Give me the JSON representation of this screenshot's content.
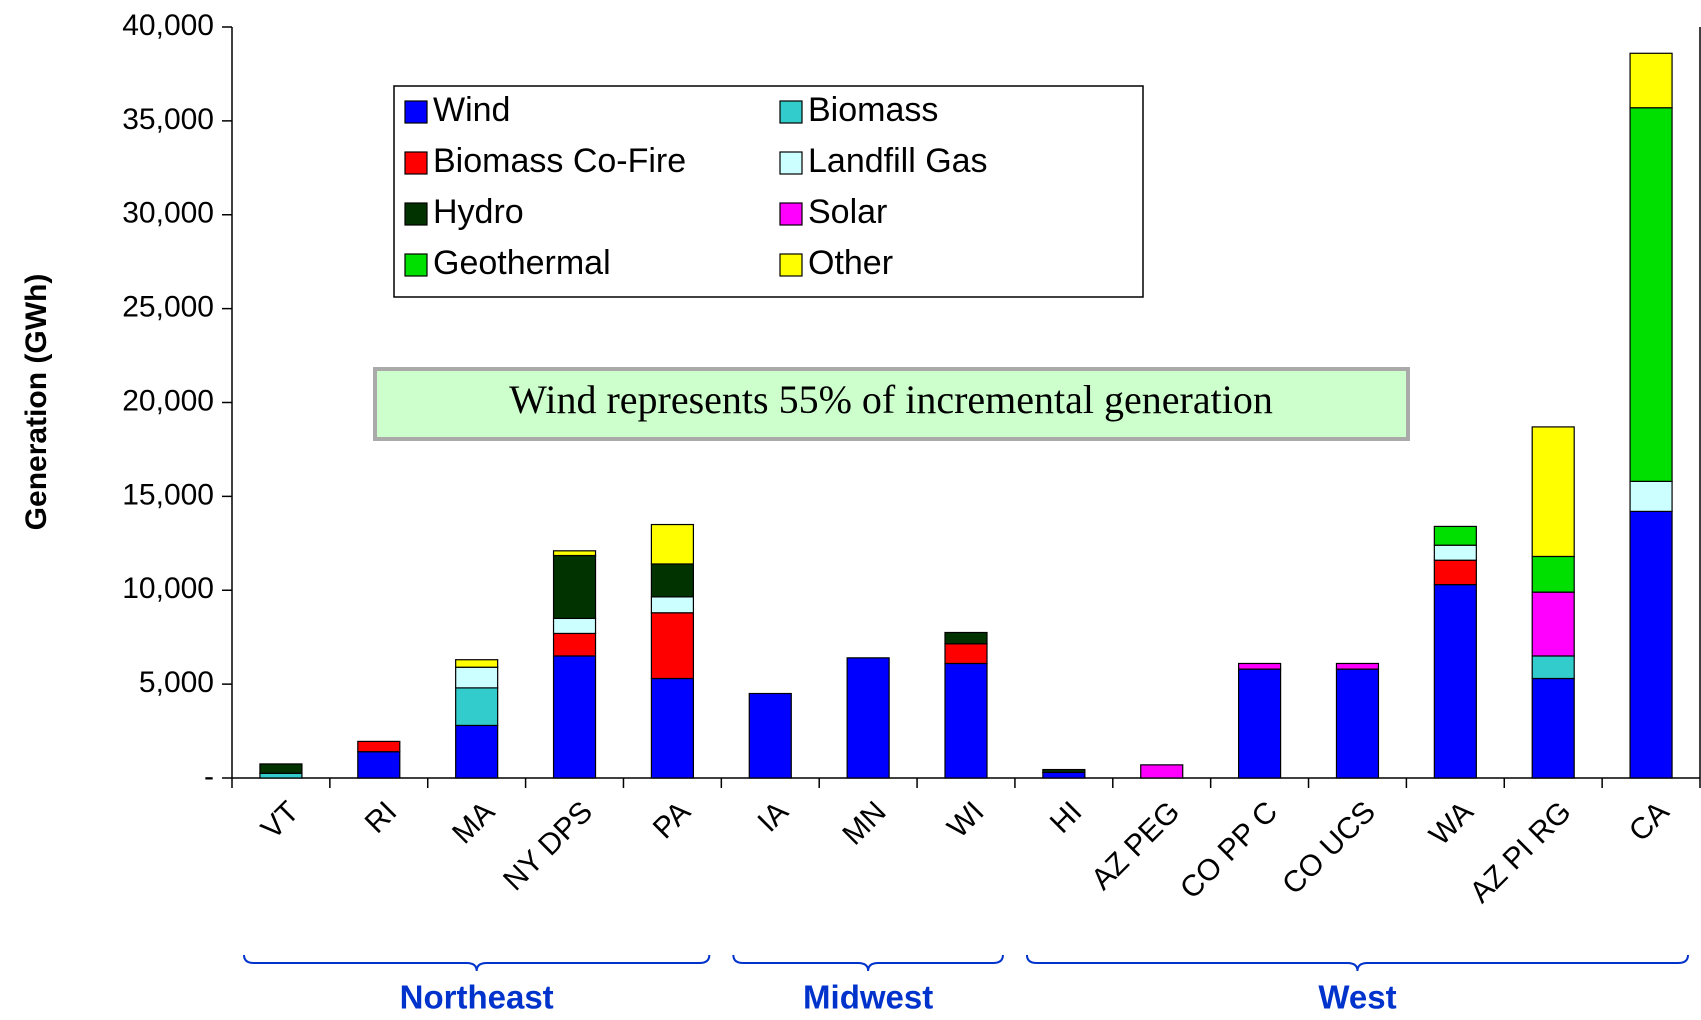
{
  "chart_data": {
    "type": "stacked-bar",
    "y_label": "Generation (GWh)",
    "annotation": "Wind represents 55% of incremental generation",
    "categories": [
      "VT",
      "RI",
      "MA",
      "NY DPS",
      "PA",
      "IA",
      "MN",
      "WI",
      "HI",
      "AZ PEG",
      "CO PP C",
      "CO UCS",
      "WA",
      "AZ PI RG",
      "CA"
    ],
    "regions": [
      "Northeast",
      "Midwest",
      "West"
    ],
    "ylim": [
      0,
      40000
    ],
    "yticks": [
      {
        "value": 0,
        "label": "-"
      },
      {
        "value": 5000,
        "label": "5,000"
      },
      {
        "value": 10000,
        "label": "10,000"
      },
      {
        "value": 15000,
        "label": "15,000"
      },
      {
        "value": 20000,
        "label": "20,000"
      },
      {
        "value": 25000,
        "label": "25,000"
      },
      {
        "value": 30000,
        "label": "30,000"
      },
      {
        "value": 35000,
        "label": "35,000"
      },
      {
        "value": 40000,
        "label": "40,000"
      }
    ],
    "series": [
      {
        "name": "Wind",
        "color": "#0000ff",
        "values": [
          0,
          1400,
          2800,
          6500,
          5300,
          4500,
          6400,
          6100,
          300,
          0,
          5800,
          5800,
          10300,
          5300,
          14200
        ]
      },
      {
        "name": "Biomass",
        "color": "#33cccc",
        "values": [
          250,
          0,
          2000,
          0,
          0,
          0,
          0,
          0,
          0,
          0,
          0,
          0,
          0,
          1200,
          0
        ]
      },
      {
        "name": "Biomass Co-Fire",
        "color": "#ff0000",
        "values": [
          0,
          550,
          0,
          1200,
          3500,
          0,
          0,
          1050,
          0,
          0,
          0,
          0,
          1300,
          0,
          0
        ]
      },
      {
        "name": "Landfill Gas",
        "color": "#ccffff",
        "values": [
          0,
          0,
          1100,
          800,
          850,
          0,
          0,
          0,
          0,
          0,
          0,
          0,
          800,
          0,
          1600
        ]
      },
      {
        "name": "Hydro",
        "color": "#003300",
        "values": [
          500,
          0,
          0,
          3350,
          1750,
          0,
          0,
          600,
          150,
          0,
          0,
          0,
          0,
          0,
          0
        ]
      },
      {
        "name": "Solar",
        "color": "#ff00ff",
        "values": [
          0,
          0,
          0,
          0,
          0,
          0,
          0,
          0,
          0,
          700,
          300,
          300,
          0,
          3400,
          0
        ]
      },
      {
        "name": "Geothermal",
        "color": "#00e000",
        "values": [
          0,
          0,
          0,
          0,
          0,
          0,
          0,
          0,
          0,
          0,
          0,
          0,
          1000,
          1900,
          19900
        ]
      },
      {
        "name": "Other",
        "color": "#ffff00",
        "values": [
          0,
          0,
          400,
          250,
          2100,
          0,
          0,
          0,
          0,
          0,
          0,
          0,
          0,
          6900,
          2900
        ]
      }
    ]
  }
}
